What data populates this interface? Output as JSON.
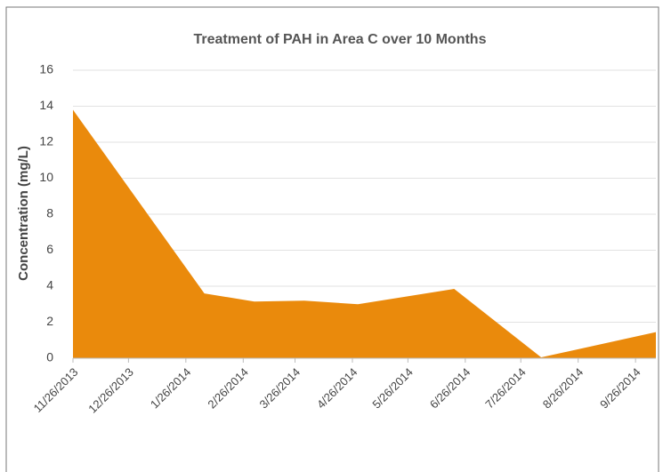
{
  "chart_data": {
    "type": "area",
    "title": "Treatment of PAH in Area C over 10 Months",
    "ylabel": "Concentration (mg/L)",
    "x": [
      "2013-11-26",
      "2014-02-05",
      "2014-03-04",
      "2014-03-31",
      "2014-04-29",
      "2014-06-20",
      "2014-08-06",
      "2014-10-07"
    ],
    "values": [
      13.8,
      3.6,
      3.15,
      3.2,
      3.0,
      3.85,
      0.05,
      1.45
    ],
    "color": "#ea8a0c",
    "xlim": [
      "2013-11-26",
      "2014-10-07"
    ],
    "xticks": [
      {
        "value": "2013-11-26",
        "label": "11/26/2013"
      },
      {
        "value": "2013-12-26",
        "label": "12/26/2013"
      },
      {
        "value": "2014-01-26",
        "label": "1/26/2014"
      },
      {
        "value": "2014-02-26",
        "label": "2/26/2014"
      },
      {
        "value": "2014-03-26",
        "label": "3/26/2014"
      },
      {
        "value": "2014-04-26",
        "label": "4/26/2014"
      },
      {
        "value": "2014-05-26",
        "label": "5/26/2014"
      },
      {
        "value": "2014-06-26",
        "label": "6/26/2014"
      },
      {
        "value": "2014-07-26",
        "label": "7/26/2014"
      },
      {
        "value": "2014-08-26",
        "label": "8/26/2014"
      },
      {
        "value": "2014-09-26",
        "label": "9/26/2014"
      }
    ],
    "ylim": [
      0,
      16
    ],
    "yticks": [
      0,
      2,
      4,
      6,
      8,
      10,
      12,
      14,
      16
    ],
    "grid": true
  }
}
